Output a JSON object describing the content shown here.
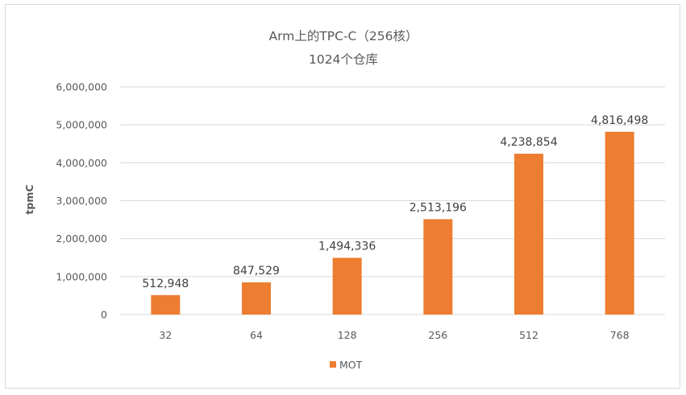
{
  "chart_data": {
    "type": "bar",
    "title": "Arm上的TPC-C（256核）",
    "subtitle": "1024个仓库",
    "xlabel": "",
    "ylabel": "tpmC",
    "categories": [
      "32",
      "64",
      "128",
      "256",
      "512",
      "768"
    ],
    "series": [
      {
        "name": "MOT",
        "values": [
          512948,
          847529,
          1494336,
          2513196,
          4238854,
          4816498
        ]
      }
    ],
    "data_labels": [
      "512,948",
      "847,529",
      "1,494,336",
      "2,513,196",
      "4,238,854",
      "4,816,498"
    ],
    "ylim": [
      0,
      6000000
    ],
    "yticks": [
      0,
      1000000,
      2000000,
      3000000,
      4000000,
      5000000,
      6000000
    ],
    "ytick_labels": [
      "0",
      "1,000,000",
      "2,000,000",
      "3,000,000",
      "4,000,000",
      "5,000,000",
      "6,000,000"
    ],
    "grid": true,
    "legend_position": "bottom",
    "bar_color": "#ed7d31",
    "grid_color": "#d9d9d9"
  }
}
